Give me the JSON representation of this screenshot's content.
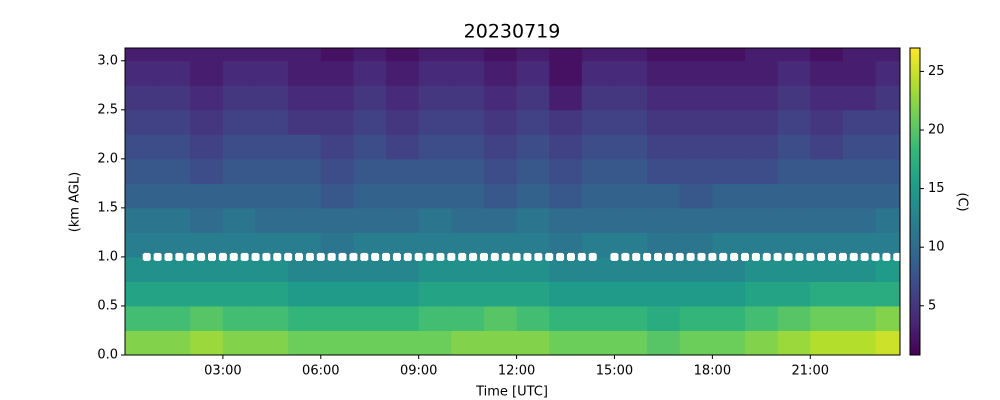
{
  "chart_data": {
    "type": "heatmap",
    "title": "20230719",
    "xlabel": "Time [UTC]",
    "ylabel": "(km AGL)",
    "colorbar_label": "(C)",
    "colormap": "viridis",
    "xlim": [
      0,
      1425
    ],
    "xticks": [
      {
        "value": 180,
        "label": "03:00"
      },
      {
        "value": 360,
        "label": "06:00"
      },
      {
        "value": 540,
        "label": "09:00"
      },
      {
        "value": 720,
        "label": "12:00"
      },
      {
        "value": 900,
        "label": "15:00"
      },
      {
        "value": 1080,
        "label": "18:00"
      },
      {
        "value": 1260,
        "label": "21:00"
      }
    ],
    "ylim": [
      0,
      3.13
    ],
    "yticks": [
      {
        "value": 0,
        "label": "0.0"
      },
      {
        "value": 0.5,
        "label": "0.5"
      },
      {
        "value": 1,
        "label": "1.0"
      },
      {
        "value": 1.5,
        "label": "1.5"
      },
      {
        "value": 2,
        "label": "2.0"
      },
      {
        "value": 2.5,
        "label": "2.5"
      },
      {
        "value": 3,
        "label": "3.0"
      }
    ],
    "clim": [
      0.8,
      27
    ],
    "cticks": [
      5,
      10,
      15,
      20,
      25
    ],
    "x_edges": [
      0,
      60,
      120,
      180,
      240,
      300,
      360,
      420,
      480,
      540,
      600,
      660,
      720,
      780,
      840,
      900,
      960,
      1020,
      1080,
      1140,
      1200,
      1260,
      1320,
      1380,
      1425
    ],
    "y_edges": [
      0,
      0.25,
      0.5,
      0.75,
      1,
      1.25,
      1.5,
      1.75,
      2,
      2.25,
      2.5,
      2.75,
      3,
      3.13
    ],
    "z": [
      [
        22,
        22,
        23,
        22,
        22,
        21,
        21,
        21,
        21,
        21,
        22,
        22,
        22,
        21,
        21,
        21,
        20,
        21,
        21,
        22,
        23,
        24,
        24,
        25
      ],
      [
        19,
        19,
        20,
        19,
        19,
        18,
        18,
        18,
        18,
        19,
        19,
        20,
        19,
        18,
        18,
        18,
        17,
        18,
        18,
        19,
        20,
        21,
        21,
        22
      ],
      [
        16,
        16,
        16,
        16,
        16,
        15,
        15,
        15,
        15,
        16,
        16,
        16,
        16,
        15,
        15,
        15,
        15,
        15,
        15,
        16,
        16,
        17,
        17,
        17
      ],
      [
        14,
        14,
        14,
        14,
        14,
        13,
        13,
        13,
        13,
        14,
        14,
        14,
        14,
        13,
        13,
        13,
        13,
        13,
        13,
        14,
        14,
        14,
        14,
        15
      ],
      [
        12,
        12,
        12,
        12,
        12,
        12,
        11,
        12,
        12,
        12,
        12,
        12,
        12,
        11,
        12,
        12,
        11,
        11,
        12,
        12,
        12,
        12,
        12,
        12
      ],
      [
        11,
        11,
        10,
        11,
        10,
        10,
        10,
        10,
        10,
        11,
        10,
        10,
        11,
        10,
        10,
        10,
        10,
        10,
        10,
        10,
        10,
        10,
        10,
        11
      ],
      [
        9,
        9,
        9,
        9,
        9,
        9,
        8,
        9,
        9,
        9,
        9,
        8,
        9,
        8,
        9,
        9,
        9,
        8,
        9,
        9,
        9,
        9,
        9,
        9
      ],
      [
        8,
        8,
        7,
        8,
        8,
        8,
        7,
        8,
        8,
        8,
        8,
        7,
        8,
        7,
        8,
        8,
        7,
        7,
        7,
        7,
        8,
        8,
        8,
        8
      ],
      [
        7,
        7,
        6,
        7,
        7,
        7,
        6,
        7,
        6,
        7,
        7,
        6,
        7,
        6,
        7,
        7,
        6,
        6,
        6,
        6,
        7,
        6,
        7,
        7
      ],
      [
        6,
        6,
        5,
        6,
        6,
        5,
        5,
        6,
        5,
        6,
        6,
        5,
        6,
        5,
        6,
        6,
        5,
        5,
        5,
        5,
        6,
        5,
        6,
        6
      ],
      [
        5,
        5,
        4,
        5,
        5,
        4,
        4,
        5,
        4,
        5,
        5,
        4,
        5,
        3,
        5,
        5,
        4,
        4,
        4,
        4,
        5,
        4,
        4,
        5
      ],
      [
        4,
        4,
        3,
        4,
        4,
        3,
        3,
        4,
        3,
        4,
        4,
        3,
        4,
        2,
        4,
        4,
        3,
        3,
        3,
        3,
        4,
        3,
        3,
        4
      ],
      [
        3,
        3,
        3,
        3,
        3,
        3,
        2,
        3,
        2,
        3,
        3,
        2,
        3,
        2,
        3,
        3,
        2,
        2,
        2,
        3,
        3,
        2,
        3,
        3
      ]
    ],
    "series": [
      {
        "color": "#ffffff",
        "x": [
          40,
          60,
          80,
          100,
          120,
          140,
          160,
          180,
          200,
          220,
          240,
          260,
          280,
          300,
          320,
          340,
          360,
          380,
          400,
          420,
          440,
          460,
          480,
          500,
          520,
          540,
          560,
          580,
          600,
          620,
          640,
          660,
          680,
          700,
          720,
          740,
          760,
          780,
          800,
          820,
          840,
          860,
          900,
          920,
          940,
          960,
          980,
          1000,
          1020,
          1040,
          1060,
          1080,
          1100,
          1120,
          1140,
          1160,
          1180,
          1200,
          1220,
          1240,
          1260,
          1280,
          1300,
          1320,
          1340,
          1360,
          1380,
          1400,
          1420
        ],
        "y": [
          1,
          1,
          1,
          1,
          1,
          1,
          1,
          1,
          1,
          1,
          1,
          1,
          1,
          1,
          1,
          1,
          1,
          1,
          1,
          1,
          1,
          1,
          1,
          1,
          1,
          1,
          1,
          1,
          1,
          1,
          1,
          1,
          1,
          1,
          1,
          1,
          1,
          1,
          1,
          1,
          1,
          1,
          1,
          1,
          1,
          1,
          1,
          1,
          1,
          1,
          1,
          1,
          1,
          1,
          1,
          1,
          1,
          1,
          1,
          1,
          1,
          1,
          1,
          1,
          1,
          1,
          1,
          1,
          1
        ]
      }
    ]
  }
}
